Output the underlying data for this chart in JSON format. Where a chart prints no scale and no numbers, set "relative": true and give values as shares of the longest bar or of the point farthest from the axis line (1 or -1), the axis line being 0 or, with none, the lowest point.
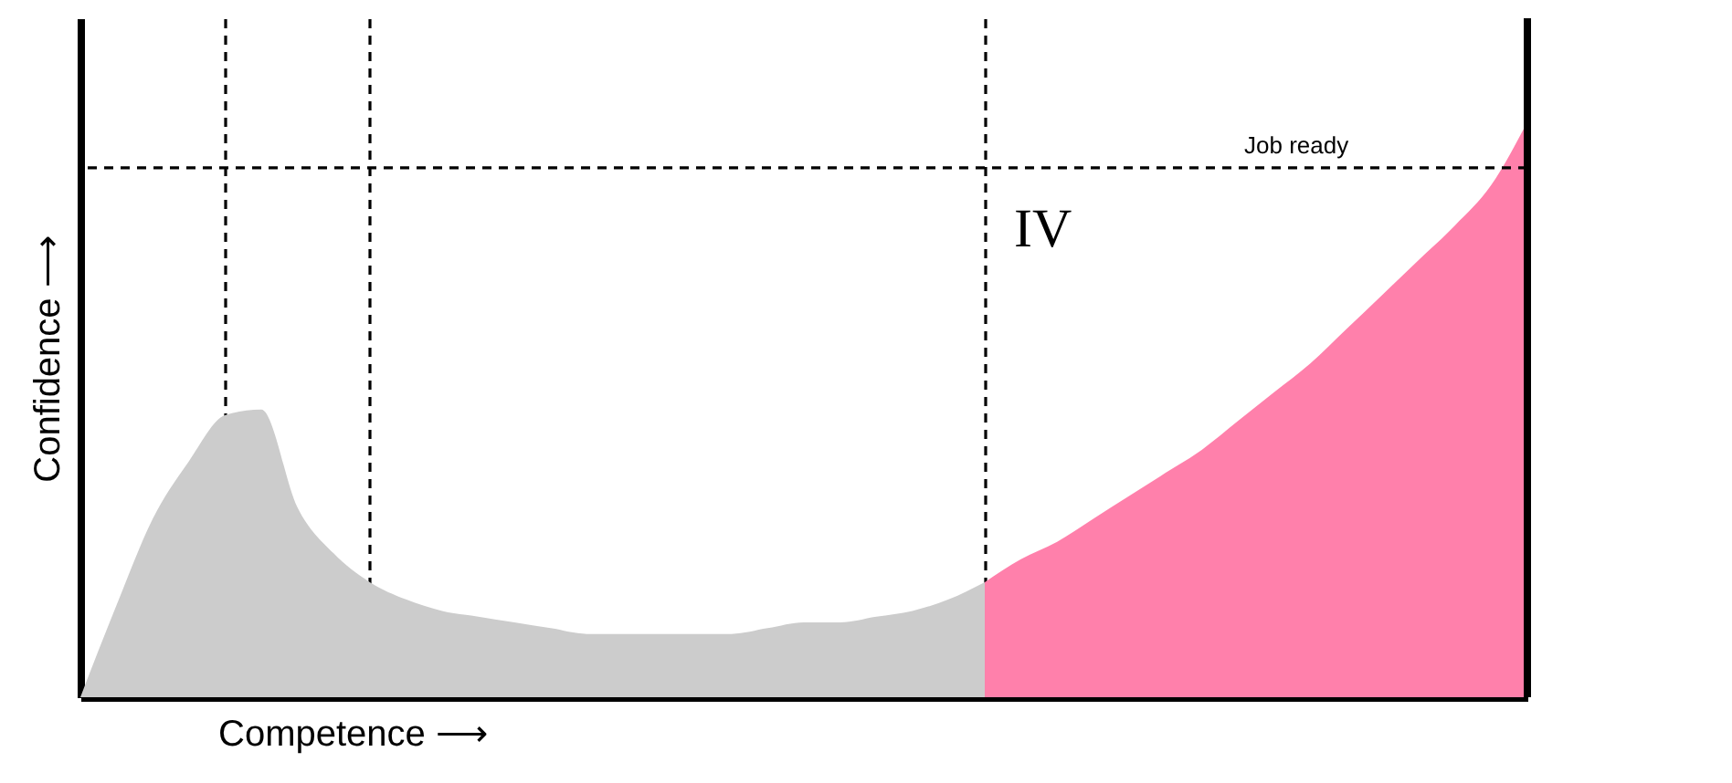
{
  "chart_data": {
    "type": "area",
    "relative": true,
    "xlabel": "Competence ⟶",
    "ylabel": "Confidence ⟶",
    "categories": [
      null,
      null,
      null,
      null,
      null,
      null,
      null,
      null,
      null,
      null,
      null,
      null,
      null,
      null,
      null,
      null,
      null,
      null,
      null,
      null,
      null,
      null,
      null,
      null,
      null,
      null,
      null,
      null,
      null,
      null,
      null,
      null,
      null,
      null,
      null,
      null,
      null,
      null,
      null,
      null,
      null
    ],
    "series": [
      {
        "color": "#cccccc",
        "values": [
          0,
          0.16,
          0.31,
          0.41,
          0.49,
          0.5,
          0.33,
          0.25,
          0.2,
          0.17,
          0.15,
          0.14,
          0.13,
          0.12,
          0.11,
          0.11,
          0.11,
          0.11,
          0.11,
          0.12,
          0.13,
          0.13,
          0.14,
          0.15,
          0.17,
          0.2,
          null,
          null,
          null,
          null,
          null,
          null,
          null,
          null,
          null,
          null,
          null,
          null,
          null,
          null,
          null
        ]
      },
      {
        "color": "#ff80ab",
        "values": [
          null,
          null,
          null,
          null,
          null,
          null,
          null,
          null,
          null,
          null,
          null,
          null,
          null,
          null,
          null,
          null,
          null,
          null,
          null,
          null,
          null,
          null,
          null,
          null,
          null,
          0.2,
          0.24,
          0.27,
          0.31,
          0.35,
          0.39,
          0.43,
          0.48,
          0.53,
          0.58,
          0.64,
          0.7,
          0.76,
          0.82,
          0.89,
          1
        ]
      }
    ],
    "ref_lines": [
      {
        "axis": "y",
        "value": 0.92,
        "label": "Job ready",
        "line_style": "dashed",
        "color": "#000000"
      }
    ],
    "annotations": [
      "IV"
    ],
    "grid": "x"
  }
}
